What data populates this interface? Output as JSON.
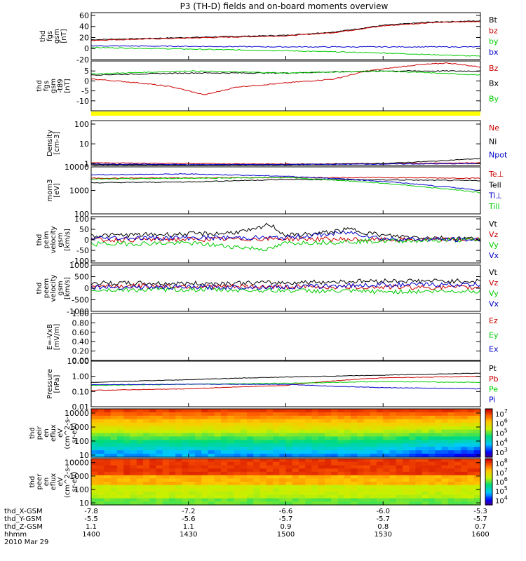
{
  "title": "P3 (TH-D) fields and on-board moments overview",
  "colors": {
    "black": "#000000",
    "red": "#cc0000",
    "blue": "#0000cc",
    "green": "#00cc00",
    "yellow": "#ffff00"
  },
  "chart_data": [
    {
      "type": "line",
      "ylabel": [
        "thd",
        "fgs",
        "gsm",
        "[nT]"
      ],
      "ylim": [
        -20,
        65
      ],
      "yscale": "linear",
      "yticks": [
        "-20",
        "0",
        "20",
        "40",
        "60"
      ],
      "series": [
        {
          "name": "Bt",
          "color": "#000000",
          "x": [
            1400,
            1430,
            1500,
            1515,
            1530,
            1545,
            1600
          ],
          "y": [
            16,
            20,
            24,
            30,
            42,
            48,
            50
          ]
        },
        {
          "name": "bz",
          "color": "#cc0000",
          "x": [
            1400,
            1430,
            1500,
            1515,
            1530,
            1545,
            1600
          ],
          "y": [
            15,
            19,
            23,
            29,
            41,
            47,
            49
          ]
        },
        {
          "name": "by",
          "color": "#00cc00",
          "x": [
            1400,
            1430,
            1500,
            1530,
            1600
          ],
          "y": [
            2,
            -1,
            -4,
            -8,
            -14
          ]
        },
        {
          "name": "bx",
          "color": "#0000cc",
          "x": [
            1400,
            1430,
            1500,
            1530,
            1600
          ],
          "y": [
            5,
            4,
            3,
            3,
            3
          ]
        }
      ]
    },
    {
      "type": "line",
      "ylabel": [
        "thd",
        "fgs",
        "gsm",
        "-t89",
        "[nT]"
      ],
      "ylim": [
        -15,
        10
      ],
      "yscale": "linear",
      "yticks": [
        "-10",
        "-5",
        "0",
        "5"
      ],
      "series": [
        {
          "name": "Bz",
          "color": "#cc0000",
          "x": [
            1400,
            1415,
            1425,
            1435,
            1445,
            1500,
            1515,
            1525,
            1540,
            1550,
            1600
          ],
          "y": [
            1,
            -1,
            -3,
            -7,
            -3,
            -1,
            1,
            5,
            8,
            9,
            7
          ]
        },
        {
          "name": "Bx",
          "color": "#000000",
          "x": [
            1400,
            1430,
            1500,
            1530,
            1600
          ],
          "y": [
            3,
            4,
            4,
            5,
            5
          ]
        },
        {
          "name": "By",
          "color": "#00cc00",
          "x": [
            1400,
            1430,
            1500,
            1530,
            1600
          ],
          "y": [
            3.5,
            5,
            4,
            5,
            3
          ]
        }
      ]
    },
    {
      "type": "line",
      "ylabel": [
        "Density",
        "[cm-3]"
      ],
      "ylim": [
        0.8,
        150
      ],
      "yscale": "log",
      "yticks": [
        "1",
        "10",
        "100"
      ],
      "series": [
        {
          "name": "Ne",
          "color": "#cc0000",
          "x": [
            1400,
            1430,
            1500,
            1530,
            1600
          ],
          "y": [
            1.1,
            1.0,
            0.95,
            1.0,
            1.1
          ]
        },
        {
          "name": "Ni",
          "color": "#000000",
          "x": [
            1400,
            1430,
            1500,
            1530,
            1545,
            1600
          ],
          "y": [
            0.9,
            0.85,
            0.9,
            1.0,
            1.3,
            1.8
          ]
        },
        {
          "name": "Npot",
          "color": "#0000cc",
          "x": [
            1400,
            1430,
            1500,
            1530,
            1600
          ],
          "y": [
            0.95,
            0.9,
            0.9,
            0.95,
            1.0
          ]
        }
      ]
    },
    {
      "type": "line",
      "ylabel": [
        "mom3",
        "[eV]"
      ],
      "ylim": [
        100,
        10000
      ],
      "yscale": "log",
      "yticks": [
        "100",
        "1000",
        "10000"
      ],
      "series": [
        {
          "name": "Te⊥",
          "color": "#cc0000",
          "x": [
            1400,
            1430,
            1500,
            1530,
            1600
          ],
          "y": [
            3300,
            3400,
            3500,
            3500,
            3300
          ]
        },
        {
          "name": "Tell",
          "color": "#000000",
          "x": [
            1400,
            1430,
            1500,
            1530,
            1600
          ],
          "y": [
            2100,
            2300,
            2900,
            2800,
            2600
          ]
        },
        {
          "name": "Ti⊥",
          "color": "#0000cc",
          "x": [
            1400,
            1430,
            1500,
            1530,
            1545,
            1600
          ],
          "y": [
            4600,
            5000,
            4000,
            2400,
            1600,
            1000
          ]
        },
        {
          "name": "Till",
          "color": "#00cc00",
          "x": [
            1400,
            1430,
            1500,
            1530,
            1545,
            1600
          ],
          "y": [
            3000,
            3300,
            3500,
            2000,
            1300,
            800
          ]
        }
      ]
    },
    {
      "type": "line",
      "ylabel": [
        "thd",
        "peim",
        "velocity",
        "gsm",
        "[km/s]"
      ],
      "ylim": [
        -110,
        110
      ],
      "yscale": "linear",
      "yticks": [
        "-100",
        "-50",
        "0",
        "50",
        "100"
      ],
      "series": [
        {
          "name": "Vt",
          "color": "#000000",
          "x": [
            1400,
            1420,
            1440,
            1450,
            1455,
            1500,
            1510,
            1520,
            1530,
            1545,
            1600
          ],
          "y": [
            20,
            25,
            30,
            45,
            75,
            20,
            30,
            50,
            20,
            10,
            5
          ]
        },
        {
          "name": "Vz",
          "color": "#cc0000",
          "x": [
            1400,
            1430,
            1500,
            1530,
            1600
          ],
          "y": [
            0,
            2,
            5,
            0,
            2
          ]
        },
        {
          "name": "Vy",
          "color": "#00cc00",
          "x": [
            1400,
            1430,
            1450,
            1455,
            1500,
            1530,
            1600
          ],
          "y": [
            -20,
            -15,
            -40,
            -45,
            -15,
            -5,
            0
          ]
        },
        {
          "name": "Vx",
          "color": "#0000cc",
          "x": [
            1400,
            1430,
            1500,
            1520,
            1530,
            1600
          ],
          "y": [
            8,
            10,
            10,
            35,
            5,
            0
          ]
        }
      ]
    },
    {
      "type": "line",
      "ylabel": [
        "thd",
        "peem",
        "velocity",
        "gsm",
        "[km/s]"
      ],
      "ylim": [
        -1000,
        1000
      ],
      "yscale": "linear",
      "yticks": [
        "-1000",
        "-500",
        "0",
        "500",
        "1000"
      ],
      "series": [
        {
          "name": "Vt",
          "color": "#000000",
          "x": [
            1400,
            1430,
            1500,
            1530,
            1600
          ],
          "y": [
            220,
            200,
            240,
            320,
            300
          ]
        },
        {
          "name": "Vz",
          "color": "#cc0000",
          "x": [
            1400,
            1430,
            1500,
            1530,
            1600
          ],
          "y": [
            100,
            80,
            60,
            50,
            30
          ]
        },
        {
          "name": "Vy",
          "color": "#00cc00",
          "x": [
            1400,
            1430,
            1500,
            1530,
            1600
          ],
          "y": [
            -80,
            -60,
            -100,
            -150,
            -120
          ]
        },
        {
          "name": "Vx",
          "color": "#0000cc",
          "x": [
            1400,
            1430,
            1500,
            1530,
            1600
          ],
          "y": [
            50,
            40,
            50,
            150,
            150
          ]
        }
      ]
    },
    {
      "type": "line",
      "ylabel": [
        "E=-VxB",
        "[mV/m]"
      ],
      "ylim": [
        0,
        1
      ],
      "yscale": "linear",
      "yticks": [
        "0.00",
        "0.20",
        "0.40",
        "0.60",
        "0.80",
        "1.00"
      ],
      "series": [
        {
          "name": "Ez",
          "color": "#cc0000",
          "x": [],
          "y": []
        },
        {
          "name": "Ey",
          "color": "#00cc00",
          "x": [],
          "y": []
        },
        {
          "name": "Ex",
          "color": "#0000cc",
          "x": [],
          "y": []
        }
      ]
    },
    {
      "type": "line",
      "ylabel": [
        "Pressure",
        "[nPa]"
      ],
      "ylim": [
        0.01,
        10
      ],
      "yscale": "log",
      "yticks": [
        "0.01",
        "0.10",
        "1.00",
        "10.00"
      ],
      "series": [
        {
          "name": "Pt",
          "color": "#000000",
          "x": [
            1400,
            1430,
            1500,
            1530,
            1600
          ],
          "y": [
            0.4,
            0.6,
            0.9,
            1.2,
            1.6
          ]
        },
        {
          "name": "Pb",
          "color": "#cc0000",
          "x": [
            1400,
            1430,
            1500,
            1515,
            1530,
            1600
          ],
          "y": [
            0.12,
            0.15,
            0.25,
            0.5,
            0.8,
            1.0
          ]
        },
        {
          "name": "Pe",
          "color": "#00cc00",
          "x": [
            1400,
            1430,
            1500,
            1530,
            1600
          ],
          "y": [
            0.25,
            0.3,
            0.35,
            0.45,
            0.4
          ]
        },
        {
          "name": "Pi",
          "color": "#0000cc",
          "x": [
            1400,
            1430,
            1500,
            1515,
            1530,
            1600
          ],
          "y": [
            0.28,
            0.3,
            0.3,
            0.22,
            0.18,
            0.15
          ]
        }
      ]
    },
    {
      "type": "heatmap",
      "ylabel": [
        "thd",
        "peir",
        "en",
        "eflux",
        "eV",
        "(cm^2-s-",
        "sr-eV)"
      ],
      "ylim": [
        7,
        20000
      ],
      "yscale": "log",
      "yticks": [
        "10",
        "100",
        "1000",
        "10000"
      ],
      "colorbar": {
        "ticks": [
          "10^3",
          "10^4",
          "10^5",
          "10^6",
          "10^7"
        ],
        "range": [
          300,
          10000000
        ]
      }
    },
    {
      "type": "heatmap",
      "ylabel": [
        "thd",
        "peer",
        "en",
        "eflux",
        "eV",
        "(cm^2-s-",
        "sr-eV)"
      ],
      "ylim": [
        7,
        20000
      ],
      "yscale": "log",
      "yticks": [
        "10",
        "100",
        "1000",
        "10000"
      ],
      "colorbar": {
        "ticks": [
          "10^4",
          "10^5",
          "10^6",
          "10^7",
          "10^8"
        ],
        "range": [
          5000,
          200000000
        ]
      }
    }
  ],
  "x_axis": {
    "row_labels": [
      "thd_X-GSM",
      "thd_Y-GSM",
      "thd_Z-GSM",
      "hhmm",
      "2010 Mar 29"
    ],
    "ticks": [
      {
        "x": 1400,
        "values": [
          "-7.8",
          "-5.5",
          "1.1",
          "1400"
        ]
      },
      {
        "x": 1430,
        "values": [
          "-7.2",
          "-5.6",
          "1.1",
          "1430"
        ]
      },
      {
        "x": 1500,
        "values": [
          "-6.6",
          "-5.7",
          "0.9",
          "1500"
        ]
      },
      {
        "x": 1530,
        "values": [
          "-6.0",
          "-5.7",
          "0.8",
          "1530"
        ]
      },
      {
        "x": 1600,
        "values": [
          "-5.3",
          "-5.7",
          "0.7",
          "1600"
        ]
      }
    ]
  }
}
